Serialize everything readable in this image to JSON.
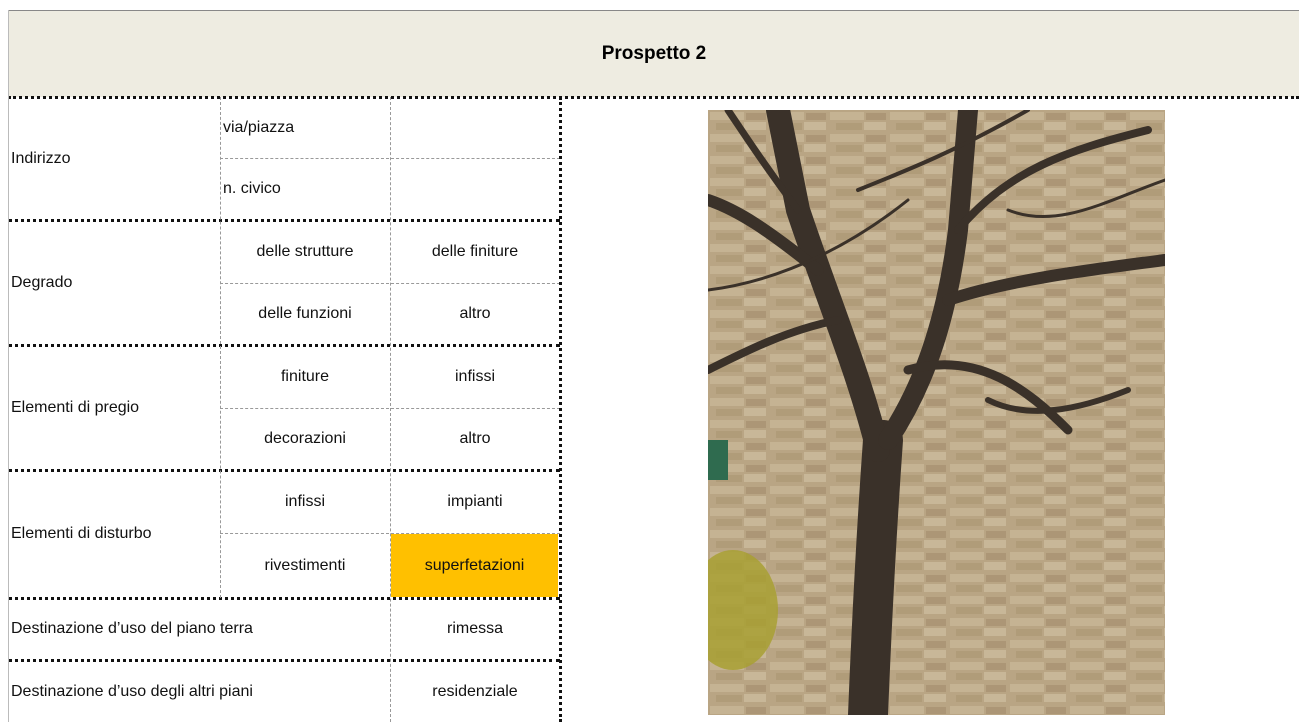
{
  "header": {
    "title": "Prospetto 2"
  },
  "address": {
    "label": "Indirizzo",
    "items": [
      "via/piazza",
      "n. civico"
    ]
  },
  "groups": [
    {
      "label": "Degrado",
      "items": [
        [
          "delle strutture",
          "delle finiture"
        ],
        [
          "delle funzioni",
          "altro"
        ]
      ]
    },
    {
      "label": "Elementi di pregio",
      "items": [
        [
          "finiture",
          "infissi"
        ],
        [
          "decorazioni",
          "altro"
        ]
      ]
    },
    {
      "label": "Elementi di disturbo",
      "items": [
        [
          "infissi",
          "impianti"
        ],
        [
          "rivestimenti",
          "superfetazioni"
        ]
      ]
    }
  ],
  "usage": [
    {
      "label": "Destinazione d’uso del piano terra",
      "value": "rimessa"
    },
    {
      "label": "Destinazione d’uso degli altri piani",
      "value": "residenziale"
    }
  ]
}
